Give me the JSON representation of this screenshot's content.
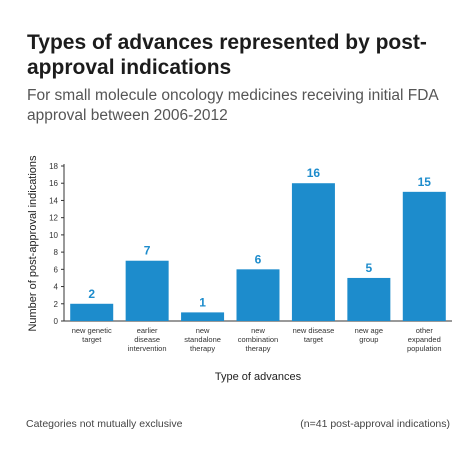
{
  "header": {
    "title": "Types of advances represented by post-approval indications",
    "subtitle": "For small molecule oncology medicines receiving initial FDA approval between 2006-2012"
  },
  "footer": {
    "note_left": "Categories not mutually exclusive",
    "note_right": "(n=41 post-approval indications)"
  },
  "colors": {
    "bar": "#1d8ccc",
    "label": "#1d8ccc",
    "axis": "#333333"
  },
  "chart_data": {
    "type": "bar",
    "title": "Types of advances represented by post-approval indications",
    "subtitle": "For small molecule oncology medicines receiving initial FDA approval between 2006-2012",
    "xlabel": "Type of advances",
    "ylabel": "Number of post-approval indications",
    "ylim": [
      0,
      18
    ],
    "yticks": [
      0,
      2,
      4,
      6,
      8,
      10,
      12,
      14,
      16,
      18
    ],
    "grid": false,
    "categories": [
      [
        "new genetic",
        "target"
      ],
      [
        "earlier",
        "disease",
        "intervention"
      ],
      [
        "new",
        "standalone",
        "therapy"
      ],
      [
        "new",
        "combination",
        "therapy"
      ],
      [
        "new disease",
        "target"
      ],
      [
        "new age",
        "group"
      ],
      [
        "other",
        "expanded",
        "population"
      ]
    ],
    "values": [
      2,
      7,
      1,
      6,
      16,
      5,
      15
    ]
  }
}
